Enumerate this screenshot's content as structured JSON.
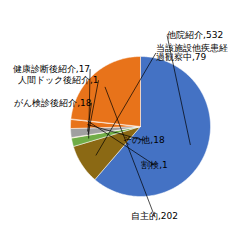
{
  "chart_data": {
    "type": "pie",
    "categories": [
      "他院紹介",
      "当該施設他疾患経\n過観察中",
      "健康診断後紹介",
      "人間ドック後紹介",
      "がん検診後紹介",
      "その他",
      "割検",
      "自主的"
    ],
    "values": [
      532,
      79,
      17,
      1,
      18,
      18,
      1,
      202
    ],
    "value_labels": [
      "他院紹介,532",
      "当該施設他疾患経\n過観察中,79",
      "健康診断後紹介,17",
      "人間ドック後紹介,1",
      "がん検診後紹介,18",
      "その他,18",
      "割検,1",
      "自主的,202"
    ],
    "colors": [
      "#4472C4",
      "#8B6914",
      "#70AD47",
      "#FFC000",
      "#A0A0A0",
      "#E8731A",
      "#E8731A",
      "#E8731A"
    ],
    "data_labels": true
  }
}
